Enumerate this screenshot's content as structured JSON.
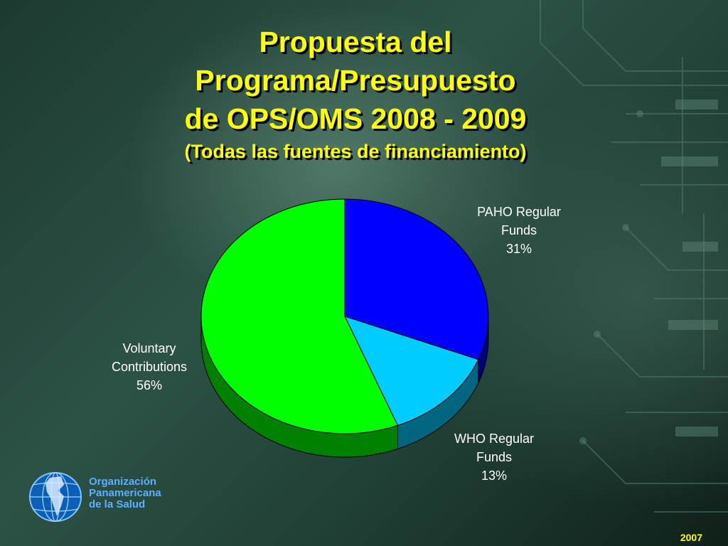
{
  "slide": {
    "title_line1": "Propuesta del",
    "title_line2": "Programa/Presupuesto",
    "title_line3": "de OPS/OMS 2008 - 2009",
    "subtitle": "(Todas las fuentes de financiamiento)",
    "footer_year": "2007"
  },
  "logo": {
    "line1": "Organización",
    "line2": "Panamericana",
    "line3": "de la Salud",
    "icon": "globe-icon"
  },
  "chart_data": {
    "type": "pie",
    "title": "Propuesta del Programa/Presupuesto de OPS/OMS 2008 - 2009 (Todas las fuentes de financiamiento)",
    "slices": [
      {
        "name_line1": "PAHO Regular",
        "name_line2": "Funds",
        "value": 31,
        "pct_label": "31%",
        "color": "#0000ff",
        "side_color": "#00007a"
      },
      {
        "name_line1": "WHO Regular",
        "name_line2": "Funds",
        "value": 13,
        "pct_label": "13%",
        "color": "#00ccff",
        "side_color": "#006680"
      },
      {
        "name_line1": "Voluntary",
        "name_line2": "Contributions",
        "value": 56,
        "pct_label": "56%",
        "color": "#00ff00",
        "side_color": "#008000"
      }
    ],
    "start": "12 o'clock",
    "direction": "clockwise",
    "style": "3d"
  }
}
